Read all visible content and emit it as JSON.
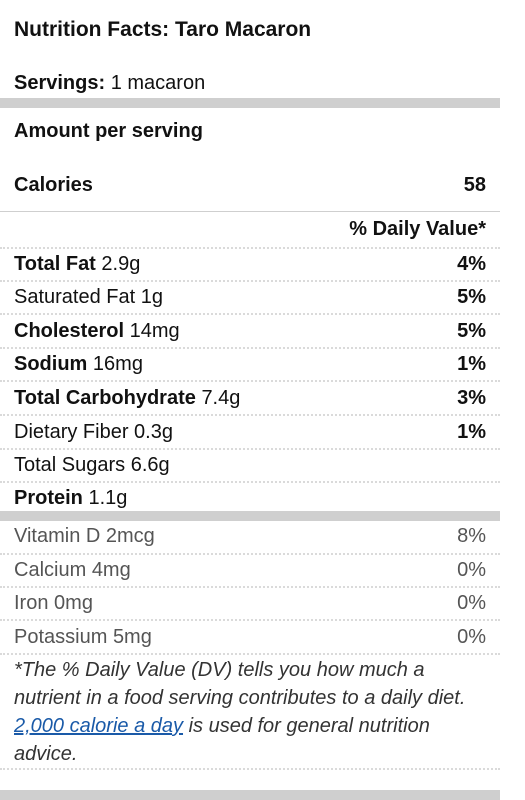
{
  "title": "Nutrition Facts: Taro Macaron",
  "servings": {
    "label": "Servings:",
    "value": "1 macaron"
  },
  "amount_per_serving": "Amount per serving",
  "calories": {
    "label": "Calories",
    "value": "58"
  },
  "daily_value_header": "% Daily Value*",
  "nutrients": [
    {
      "name": "Total Fat",
      "amount": "2.9g",
      "dv": "4%",
      "bold": true
    },
    {
      "name": "Saturated Fat",
      "amount": "1g",
      "dv": "5%",
      "bold": false
    },
    {
      "name": "Cholesterol",
      "amount": "14mg",
      "dv": "5%",
      "bold": true
    },
    {
      "name": "Sodium",
      "amount": "16mg",
      "dv": "1%",
      "bold": true
    },
    {
      "name": "Total Carbohydrate",
      "amount": "7.4g",
      "dv": "3%",
      "bold": true
    },
    {
      "name": "Dietary Fiber",
      "amount": "0.3g",
      "dv": "1%",
      "bold": false
    },
    {
      "name": "Total Sugars",
      "amount": "6.6g",
      "dv": "",
      "bold": false
    },
    {
      "name": "Protein",
      "amount": "1.1g",
      "dv": "",
      "bold": true
    }
  ],
  "vitamins": [
    {
      "name": "Vitamin D",
      "amount": "2mcg",
      "dv": "8%"
    },
    {
      "name": "Calcium",
      "amount": "4mg",
      "dv": "0%"
    },
    {
      "name": "Iron",
      "amount": "0mg",
      "dv": "0%"
    },
    {
      "name": "Potassium",
      "amount": "5mg",
      "dv": "0%"
    }
  ],
  "footnote": {
    "before": "*The % Daily Value (DV) tells you how much a nutrient in a food serving contributes to a daily diet. ",
    "link": "2,000 calorie a day",
    "after": " is used for general nutrition advice."
  }
}
